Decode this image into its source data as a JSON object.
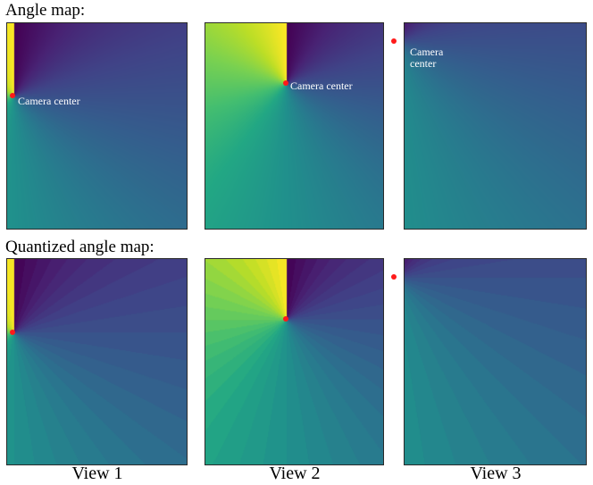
{
  "rows": [
    {
      "title": "Angle map:"
    },
    {
      "title": "Quantized angle map:"
    }
  ],
  "views": [
    {
      "label": "View 1"
    },
    {
      "label": "View 2"
    },
    {
      "label": "View 3"
    }
  ],
  "annotations": {
    "camera_center_label": "Camera center",
    "camera_center_label_line1": "Camera",
    "camera_center_label_line2": "center"
  },
  "colors": {
    "marker": "#ff1a1a",
    "colormap": "viridis"
  }
}
